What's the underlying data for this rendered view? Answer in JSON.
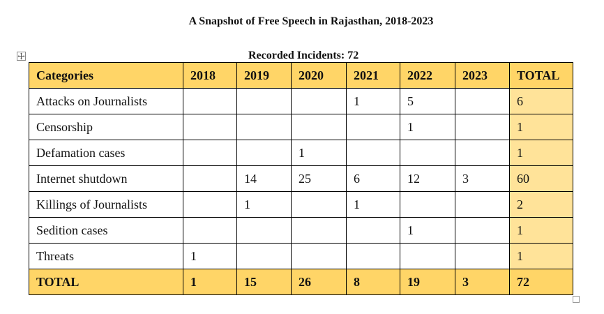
{
  "title": "A Snapshot of Free Speech in Rajasthan, 2018-2023",
  "subtitle": "Recorded Incidents: 72",
  "table": {
    "headers": [
      "Categories",
      "2018",
      "2019",
      "2020",
      "2021",
      "2022",
      "2023",
      "TOTAL"
    ],
    "rows": [
      [
        "Attacks on Journalists",
        "",
        "",
        "",
        "1",
        "5",
        "",
        "6"
      ],
      [
        "Censorship",
        "",
        "",
        "",
        "",
        "1",
        "",
        "1"
      ],
      [
        "Defamation cases",
        "",
        "",
        "1",
        "",
        "",
        "",
        "1"
      ],
      [
        "Internet shutdown",
        "",
        "14",
        "25",
        "6",
        "12",
        "3",
        "60"
      ],
      [
        "Killings of Journalists",
        "",
        "1",
        "",
        "1",
        "",
        "",
        "2"
      ],
      [
        "Sedition cases",
        "",
        "",
        "",
        "",
        "1",
        "",
        "1"
      ],
      [
        "Threats",
        "1",
        "",
        "",
        "",
        "",
        "",
        "1"
      ]
    ],
    "total_row": [
      "TOTAL",
      "1",
      "15",
      "26",
      "8",
      "19",
      "3",
      "72"
    ]
  },
  "colors": {
    "header_fill": "#ffd567",
    "total_column_fill": "#ffe399",
    "border": "#000000"
  },
  "icons": {
    "move_handle": "move-arrows-icon",
    "resize_handle": "resize-handle-icon"
  }
}
